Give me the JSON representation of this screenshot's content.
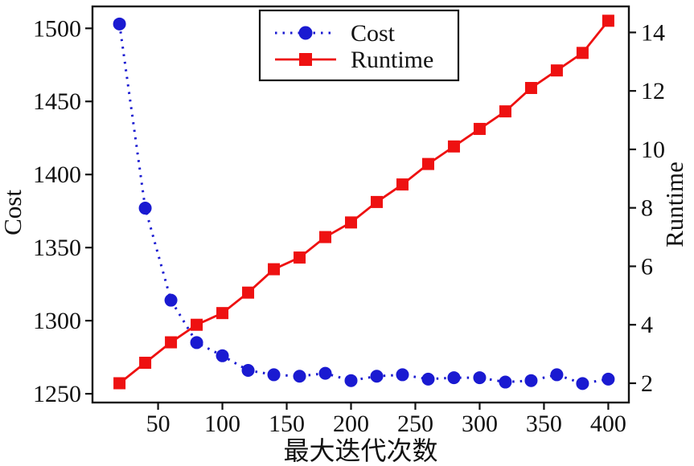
{
  "chart_data": {
    "type": "line",
    "title": "",
    "xlabel": "最大迭代次数",
    "ylabel_left": "Cost",
    "ylabel_right": "Runtime",
    "x": [
      20,
      40,
      60,
      80,
      100,
      120,
      140,
      160,
      180,
      200,
      220,
      240,
      260,
      280,
      300,
      320,
      340,
      360,
      380,
      400
    ],
    "series": [
      {
        "name": "Cost",
        "axis": "left",
        "color": "#1a1ad1",
        "line_style": "dotted",
        "marker": "circle",
        "values": [
          1503,
          1377,
          1314,
          1285,
          1276,
          1266,
          1263,
          1262,
          1264,
          1259,
          1262,
          1263,
          1260,
          1261,
          1261,
          1258,
          1259,
          1263,
          1257,
          1260
        ]
      },
      {
        "name": "Runtime",
        "axis": "right",
        "color": "#ee1111",
        "line_style": "solid",
        "marker": "square",
        "values": [
          2.0,
          2.7,
          3.4,
          4.0,
          4.4,
          5.1,
          5.9,
          6.3,
          7.0,
          7.5,
          8.2,
          8.8,
          9.5,
          10.1,
          10.7,
          11.3,
          12.1,
          12.7,
          13.3,
          14.4
        ]
      }
    ],
    "x_ticks": [
      50,
      100,
      150,
      200,
      250,
      300,
      350,
      400
    ],
    "y_ticks_left": [
      1250,
      1300,
      1350,
      1400,
      1450,
      1500
    ],
    "y_ticks_right": [
      2,
      4,
      6,
      8,
      10,
      12,
      14
    ],
    "xlim": [
      -1,
      416
    ],
    "ylim_left": [
      1244,
      1515
    ],
    "ylim_right": [
      1.34,
      14.89
    ],
    "grid": false,
    "legend": {
      "position": "upper-center",
      "entries": [
        "Cost",
        "Runtime"
      ]
    },
    "axis_color": "#111111",
    "text_color": "#111111"
  }
}
